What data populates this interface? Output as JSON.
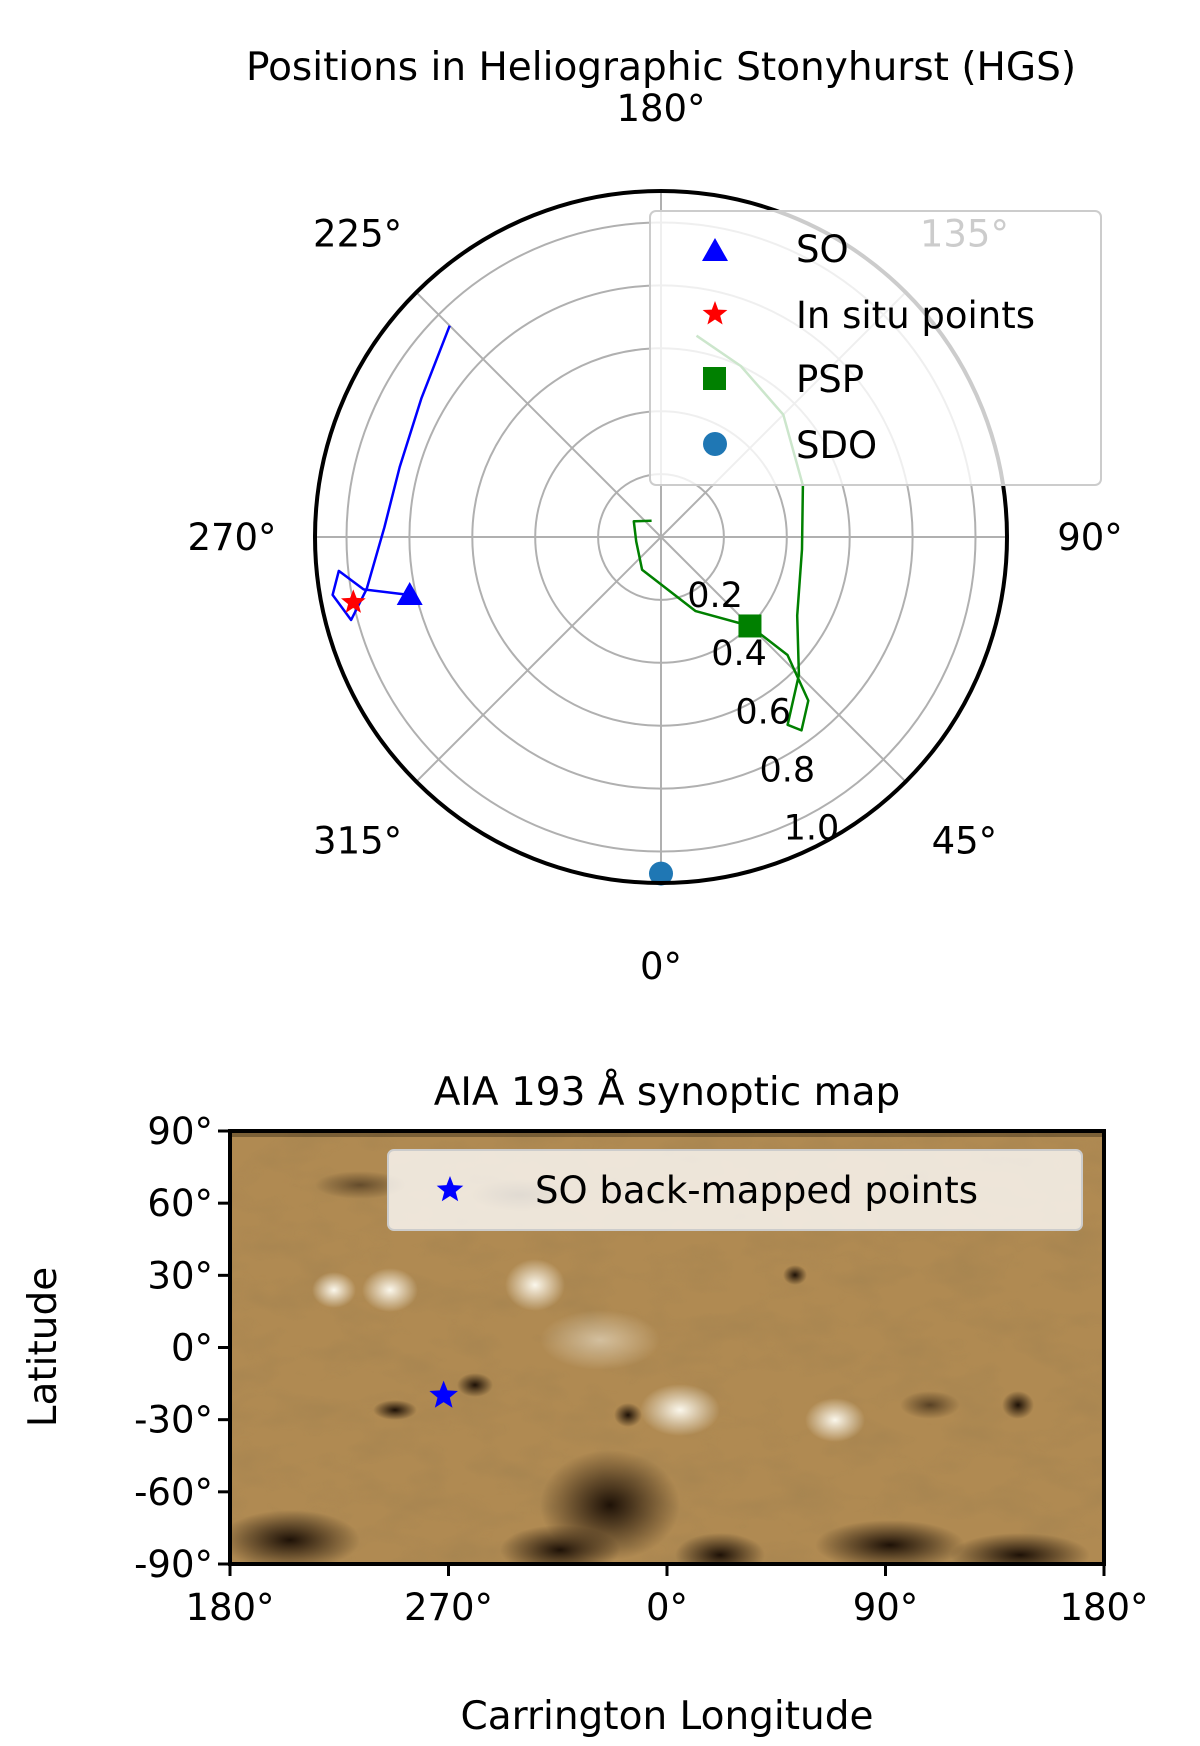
{
  "chart_data": [
    {
      "type": "scatter",
      "projection": "polar",
      "title": "Positions in Heliographic Stonyhurst (HGS)",
      "theta_tick_labels": [
        "0°",
        "45°",
        "90°",
        "135°",
        "180°",
        "225°",
        "270°",
        "315°"
      ],
      "theta_ticks_deg": [
        0,
        45,
        90,
        135,
        180,
        225,
        270,
        315
      ],
      "r_tick_labels": [
        "0.2",
        "0.4",
        "0.6",
        "0.8",
        "1.0"
      ],
      "r_ticks": [
        0.2,
        0.4,
        0.6,
        0.8,
        1.0
      ],
      "rlim": [
        0,
        1.1
      ],
      "grid": true,
      "legend_position": "top-right",
      "colors": {
        "SO": "#0000ff",
        "In situ points": "#ff0000",
        "PSP": "#008000",
        "SDO": "#1f77b4"
      },
      "series": [
        {
          "name": "SO",
          "marker": "triangle",
          "points": [
            [
              283,
              0.82
            ]
          ]
        },
        {
          "name": "In situ points",
          "marker": "star",
          "points": [
            [
              282,
              1.0
            ]
          ]
        },
        {
          "name": "PSP",
          "marker": "square",
          "points": [
            [
              45,
              0.4
            ]
          ]
        },
        {
          "name": "SDO",
          "marker": "circle",
          "points": [
            [
              0,
              1.07
            ]
          ]
        }
      ],
      "trajectories": [
        {
          "series": "SO",
          "points": [
            [
              225,
              0.95
            ],
            [
              240,
              0.88
            ],
            [
              255,
              0.86
            ],
            [
              268,
              0.88
            ],
            [
              280,
              0.95
            ],
            [
              285,
              1.02
            ],
            [
              280,
              1.06
            ],
            [
              276,
              1.03
            ],
            [
              280,
              0.96
            ],
            [
              283,
              0.82
            ]
          ]
        },
        {
          "series": "PSP",
          "points": [
            [
              210,
              0.06
            ],
            [
              240,
              0.1
            ],
            [
              280,
              0.08
            ],
            [
              330,
              0.12
            ],
            [
              25,
              0.26
            ],
            [
              45,
              0.4
            ],
            [
              47,
              0.55
            ],
            [
              42,
              0.7
            ],
            [
              36,
              0.76
            ],
            [
              34,
              0.72
            ],
            [
              45,
              0.62
            ],
            [
              60,
              0.5
            ],
            [
              85,
              0.45
            ],
            [
              110,
              0.48
            ],
            [
              135,
              0.55
            ],
            [
              155,
              0.6
            ],
            [
              170,
              0.65
            ]
          ]
        }
      ]
    },
    {
      "type": "scatter",
      "title": "AIA 193 Å  synoptic map",
      "xlabel": "Carrington Longitude",
      "ylabel": "Latitude",
      "x_tick_labels": [
        "180°",
        "270°",
        "0°",
        "90°",
        "180°"
      ],
      "y_tick_labels": [
        "90°",
        "60°",
        "30°",
        "0°",
        "-30°",
        "-60°",
        "-90°"
      ],
      "y_ticks": [
        90,
        60,
        30,
        0,
        -30,
        -60,
        -90
      ],
      "xlim_carrington": [
        180,
        540
      ],
      "ylim": [
        -90,
        90
      ],
      "legend_position": "top-right",
      "legend_color": "#0000ff",
      "background_color": "#b08a52",
      "series": [
        {
          "name": "SO back-mapped points",
          "marker": "star",
          "points": [
            [
              268,
              -20
            ]
          ]
        }
      ]
    }
  ]
}
